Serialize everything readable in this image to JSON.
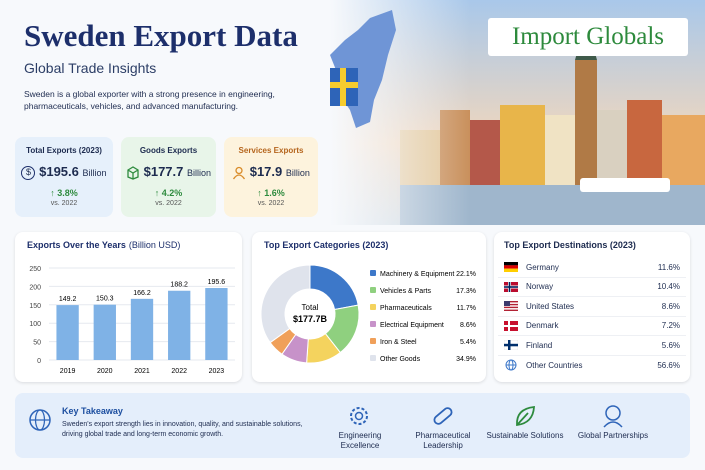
{
  "header": {
    "title": "Sweden Export Data",
    "subtitle": "Global Trade Insights",
    "description": "Sweden is a global exporter with a strong presence in engineering, pharmaceuticals, vehicles, and advanced manufacturing.",
    "logo": "Import Globals"
  },
  "kpis": [
    {
      "title": "Total Exports (2023)",
      "value": "$195.6",
      "unit": "Billion",
      "change": "↑ 3.8%",
      "period": "vs. 2022"
    },
    {
      "title": "Goods Exports",
      "value": "$177.7",
      "unit": "Billion",
      "change": "↑ 4.2%",
      "period": "vs. 2022"
    },
    {
      "title": "Services Exports",
      "value": "$17.9",
      "unit": "Billion",
      "change": "↑ 1.6%",
      "period": "vs. 2022"
    }
  ],
  "chart_data": [
    {
      "type": "bar",
      "title": "Exports Over the Years",
      "unit_label": "(Billion USD)",
      "categories": [
        "2019",
        "2020",
        "2021",
        "2022",
        "2023"
      ],
      "values": [
        149.2,
        150.3,
        166.2,
        188.2,
        195.6
      ],
      "color": "#7fb2e6",
      "ylim": [
        0,
        250
      ],
      "yticks": [
        0,
        50,
        100,
        150,
        200,
        250
      ],
      "grid": true
    },
    {
      "type": "pie",
      "title": "Top Export Categories (2023)",
      "center_label": "Total",
      "center_value": "$177.7B",
      "categories": [
        "Machinery & Equipment",
        "Vehicles & Parts",
        "Pharmaceuticals",
        "Electrical Equipment",
        "Iron & Steel",
        "Other Goods"
      ],
      "values": [
        22.1,
        17.3,
        11.7,
        8.6,
        5.4,
        34.9
      ],
      "value_labels": [
        "22.1%",
        "17.3%",
        "11.7%",
        "8.6%",
        "5.4%",
        "34.9%"
      ],
      "colors": [
        "#3d78c9",
        "#8fd07f",
        "#f4d35e",
        "#c792c9",
        "#f0a05a",
        "#dfe3ec"
      ]
    }
  ],
  "destinations": {
    "title": "Top Export Destinations (2023)",
    "rows": [
      [
        "Germany",
        "11.6%"
      ],
      [
        "Norway",
        "10.4%"
      ],
      [
        "United States",
        "8.6%"
      ],
      [
        "Denmark",
        "7.2%"
      ],
      [
        "Finland",
        "5.6%"
      ],
      [
        "Other Countries",
        "56.6%"
      ]
    ]
  },
  "takeaway": {
    "title": "Key Takeaway",
    "text": "Sweden's export strength lies in innovation, quality, and sustainable solutions, driving global trade and long-term economic growth.",
    "pillars": [
      "Engineering Excellence",
      "Pharmaceutical Leadership",
      "Sustainable Solutions",
      "Global Partnerships"
    ]
  }
}
